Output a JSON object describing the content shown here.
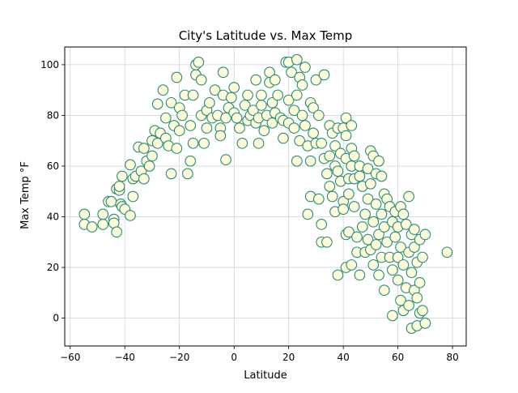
{
  "chart_data": {
    "type": "scatter",
    "title": "City's Latitude vs. Max Temp",
    "xlabel": "Latitude",
    "ylabel": "Max Temp °F",
    "xlim": [
      -62,
      85
    ],
    "ylim": [
      -11,
      107
    ],
    "x_ticks": [
      -60,
      -40,
      -20,
      0,
      20,
      40,
      60,
      80
    ],
    "y_ticks": [
      0,
      20,
      40,
      60,
      80,
      100
    ],
    "grid": true,
    "marker_face_color": "#fffcd9",
    "marker_edge_color": "#238b7a",
    "series": [
      {
        "points": [
          [
            -54.8,
            41
          ],
          [
            -54.8,
            37
          ],
          [
            -52,
            36
          ],
          [
            -48,
            37
          ],
          [
            -48,
            41
          ],
          [
            -46,
            46
          ],
          [
            -45,
            46
          ],
          [
            -44,
            39
          ],
          [
            -44,
            37.5
          ],
          [
            -43,
            51
          ],
          [
            -42,
            50.5
          ],
          [
            -42,
            52
          ],
          [
            -41.5,
            45
          ],
          [
            -41,
            56
          ],
          [
            -41,
            44
          ],
          [
            -40,
            43
          ],
          [
            -38,
            40.5
          ],
          [
            -43,
            34
          ],
          [
            -38,
            60.5
          ],
          [
            -37,
            55
          ],
          [
            -37,
            48
          ],
          [
            -36,
            56
          ],
          [
            -35,
            67.5
          ],
          [
            -34,
            58
          ],
          [
            -33,
            67
          ],
          [
            -33,
            55
          ],
          [
            -32,
            62
          ],
          [
            -31,
            60
          ],
          [
            -30,
            70
          ],
          [
            -30,
            64
          ],
          [
            -29,
            74
          ],
          [
            -28,
            69
          ],
          [
            -28,
            84.5
          ],
          [
            -27,
            73
          ],
          [
            -26,
            90
          ],
          [
            -25,
            71
          ],
          [
            -25,
            79
          ],
          [
            -24,
            68
          ],
          [
            -23,
            57
          ],
          [
            -23,
            85
          ],
          [
            -22,
            76
          ],
          [
            -21,
            95
          ],
          [
            -21,
            67
          ],
          [
            -20,
            83
          ],
          [
            -20,
            74
          ],
          [
            -19,
            80
          ],
          [
            -18,
            88
          ],
          [
            -17,
            57
          ],
          [
            -16,
            62
          ],
          [
            -16,
            76
          ],
          [
            -15,
            69
          ],
          [
            -15,
            88
          ],
          [
            -14,
            96
          ],
          [
            -14,
            100
          ],
          [
            -13,
            101
          ],
          [
            -12,
            80
          ],
          [
            -12,
            94
          ],
          [
            -11,
            69
          ],
          [
            -10,
            75
          ],
          [
            -10,
            82
          ],
          [
            -9,
            85
          ],
          [
            -8,
            79
          ],
          [
            -7,
            90
          ],
          [
            -6,
            80
          ],
          [
            -5,
            75
          ],
          [
            -5,
            72
          ],
          [
            -4,
            97
          ],
          [
            -4,
            88
          ],
          [
            -3,
            62.5
          ],
          [
            -3,
            79
          ],
          [
            -2,
            83
          ],
          [
            -1,
            87
          ],
          [
            0,
            91
          ],
          [
            0,
            81
          ],
          [
            1,
            79
          ],
          [
            2,
            75
          ],
          [
            3,
            69
          ],
          [
            4,
            84
          ],
          [
            5,
            88
          ],
          [
            5,
            78
          ],
          [
            6,
            80
          ],
          [
            7,
            82
          ],
          [
            8,
            94
          ],
          [
            8,
            77
          ],
          [
            9,
            69
          ],
          [
            9,
            79
          ],
          [
            10,
            84
          ],
          [
            10,
            88
          ],
          [
            11,
            74
          ],
          [
            12,
            80
          ],
          [
            13,
            93
          ],
          [
            13,
            97
          ],
          [
            14,
            85
          ],
          [
            14,
            77
          ],
          [
            15,
            94
          ],
          [
            15,
            81
          ],
          [
            16,
            88
          ],
          [
            17,
            79
          ],
          [
            18,
            71
          ],
          [
            18,
            78
          ],
          [
            19,
            101
          ],
          [
            20,
            101
          ],
          [
            20,
            86
          ],
          [
            20,
            77
          ],
          [
            21,
            97
          ],
          [
            22,
            82
          ],
          [
            22,
            75
          ],
          [
            23,
            102
          ],
          [
            23,
            88
          ],
          [
            23,
            62
          ],
          [
            24,
            95
          ],
          [
            24,
            70
          ],
          [
            25,
            92
          ],
          [
            25,
            80
          ],
          [
            26,
            99
          ],
          [
            26,
            76
          ],
          [
            27,
            41
          ],
          [
            27,
            68
          ],
          [
            28,
            85
          ],
          [
            28,
            62
          ],
          [
            28,
            48
          ],
          [
            29,
            83
          ],
          [
            29,
            73
          ],
          [
            30,
            94
          ],
          [
            30,
            69
          ],
          [
            31,
            47
          ],
          [
            31,
            80
          ],
          [
            32,
            69
          ],
          [
            32,
            37
          ],
          [
            32,
            30
          ],
          [
            33,
            96
          ],
          [
            33,
            63
          ],
          [
            34,
            57
          ],
          [
            34,
            30
          ],
          [
            35,
            76
          ],
          [
            35,
            64
          ],
          [
            35,
            52
          ],
          [
            36,
            73
          ],
          [
            36,
            48
          ],
          [
            37,
            68
          ],
          [
            37,
            60
          ],
          [
            37,
            42
          ],
          [
            38,
            75
          ],
          [
            38,
            58
          ],
          [
            38,
            17
          ],
          [
            39,
            54
          ],
          [
            39,
            65
          ],
          [
            40,
            75
          ],
          [
            40,
            46
          ],
          [
            40,
            43
          ],
          [
            41,
            79
          ],
          [
            41,
            72
          ],
          [
            41,
            63
          ],
          [
            41,
            33
          ],
          [
            41,
            20
          ],
          [
            42,
            55
          ],
          [
            42,
            49
          ],
          [
            42,
            34
          ],
          [
            43,
            76
          ],
          [
            43,
            67
          ],
          [
            43,
            60
          ],
          [
            43,
            21
          ],
          [
            44,
            64
          ],
          [
            44,
            55
          ],
          [
            44,
            44
          ],
          [
            45,
            32
          ],
          [
            45,
            26
          ],
          [
            46,
            60
          ],
          [
            46,
            56
          ],
          [
            46,
            17
          ],
          [
            47,
            52
          ],
          [
            47,
            36
          ],
          [
            48,
            41
          ],
          [
            48,
            26
          ],
          [
            49,
            59
          ],
          [
            49,
            47
          ],
          [
            49,
            31
          ],
          [
            50,
            66
          ],
          [
            50,
            53
          ],
          [
            50,
            27
          ],
          [
            51,
            64
          ],
          [
            51,
            38
          ],
          [
            51,
            21
          ],
          [
            52,
            57
          ],
          [
            52,
            45
          ],
          [
            52,
            29
          ],
          [
            53,
            62
          ],
          [
            53,
            33
          ],
          [
            53,
            17
          ],
          [
            54,
            56
          ],
          [
            54,
            41
          ],
          [
            54,
            24
          ],
          [
            55,
            49
          ],
          [
            55,
            36
          ],
          [
            55,
            11
          ],
          [
            56,
            47
          ],
          [
            56,
            30
          ],
          [
            57,
            44
          ],
          [
            57,
            24
          ],
          [
            58,
            38
          ],
          [
            58,
            19
          ],
          [
            58,
            1
          ],
          [
            59,
            42
          ],
          [
            59,
            32
          ],
          [
            60,
            36
          ],
          [
            60,
            24
          ],
          [
            60,
            15
          ],
          [
            61,
            44
          ],
          [
            61,
            28
          ],
          [
            61,
            7
          ],
          [
            62,
            41
          ],
          [
            62,
            21
          ],
          [
            62,
            3
          ],
          [
            63,
            37
          ],
          [
            63,
            12
          ],
          [
            64,
            48
          ],
          [
            64,
            26
          ],
          [
            64,
            5
          ],
          [
            65,
            33
          ],
          [
            65,
            18
          ],
          [
            65,
            -4
          ],
          [
            66,
            35
          ],
          [
            66,
            28
          ],
          [
            66,
            11
          ],
          [
            67,
            22
          ],
          [
            67,
            8
          ],
          [
            67,
            -3
          ],
          [
            68,
            31
          ],
          [
            68,
            14
          ],
          [
            68,
            2
          ],
          [
            69,
            24
          ],
          [
            69,
            3
          ],
          [
            70,
            33
          ],
          [
            70,
            -2
          ],
          [
            78,
            26
          ]
        ]
      }
    ]
  }
}
